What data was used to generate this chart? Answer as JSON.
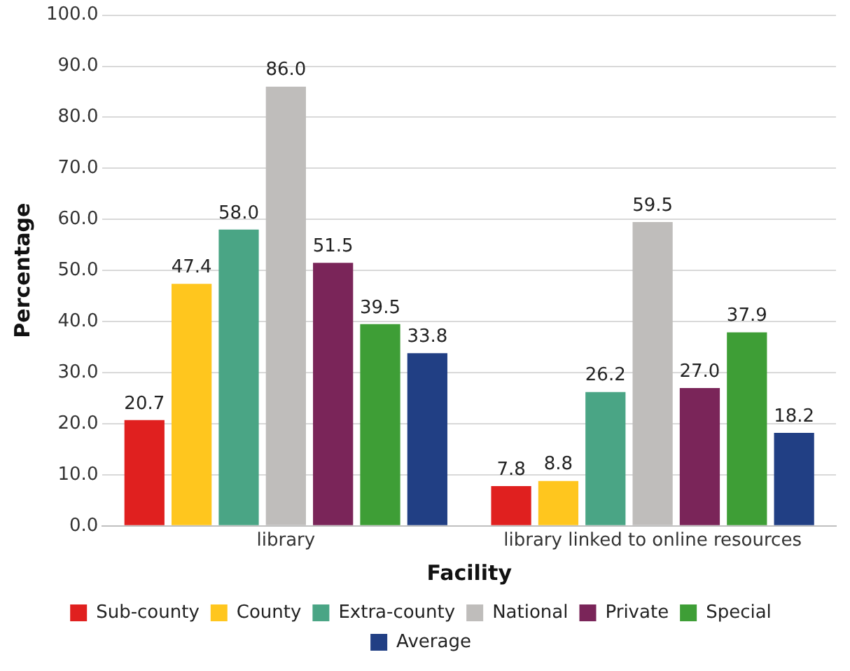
{
  "chart_data": {
    "type": "bar",
    "xlabel": "Facility",
    "ylabel": "Percentage",
    "categories": [
      "library",
      "library linked to online resources"
    ],
    "series": [
      {
        "name": "Sub-county",
        "color": "#e0201f",
        "values": [
          20.7,
          7.8
        ],
        "value_labels": [
          "20.7",
          "7.8"
        ]
      },
      {
        "name": "County",
        "color": "#ffc61e",
        "values": [
          47.4,
          8.8
        ],
        "value_labels": [
          "47.4",
          "8.8"
        ]
      },
      {
        "name": "Extra-county",
        "color": "#4aa585",
        "values": [
          58.0,
          26.2
        ],
        "value_labels": [
          "58.0",
          "26.2"
        ]
      },
      {
        "name": "National",
        "color": "#bfbdbb",
        "values": [
          86.0,
          59.5
        ],
        "value_labels": [
          "86.0",
          "59.5"
        ]
      },
      {
        "name": "Private",
        "color": "#7a2559",
        "values": [
          51.5,
          27.0
        ],
        "value_labels": [
          "51.5",
          "27.0"
        ]
      },
      {
        "name": "Special",
        "color": "#3e9e36",
        "values": [
          39.5,
          37.9
        ],
        "value_labels": [
          "39.5",
          "37.9"
        ]
      },
      {
        "name": "Average",
        "color": "#213f84",
        "values": [
          33.8,
          18.2
        ],
        "value_labels": [
          "33.8",
          "18.2"
        ]
      }
    ],
    "ylim": [
      0,
      100
    ],
    "yticks": [
      {
        "value": 0,
        "label": "0.0"
      },
      {
        "value": 10,
        "label": "10.0"
      },
      {
        "value": 20,
        "label": "20.0"
      },
      {
        "value": 30,
        "label": "30.0"
      },
      {
        "value": 40,
        "label": "40.0"
      },
      {
        "value": 50,
        "label": "50.0"
      },
      {
        "value": 60,
        "label": "60.0"
      },
      {
        "value": 70,
        "label": "70.0"
      },
      {
        "value": 80,
        "label": "80.0"
      },
      {
        "value": 90,
        "label": "90.0"
      },
      {
        "value": 100,
        "label": "100.0"
      }
    ],
    "grid": "y",
    "legend": "bottom"
  }
}
